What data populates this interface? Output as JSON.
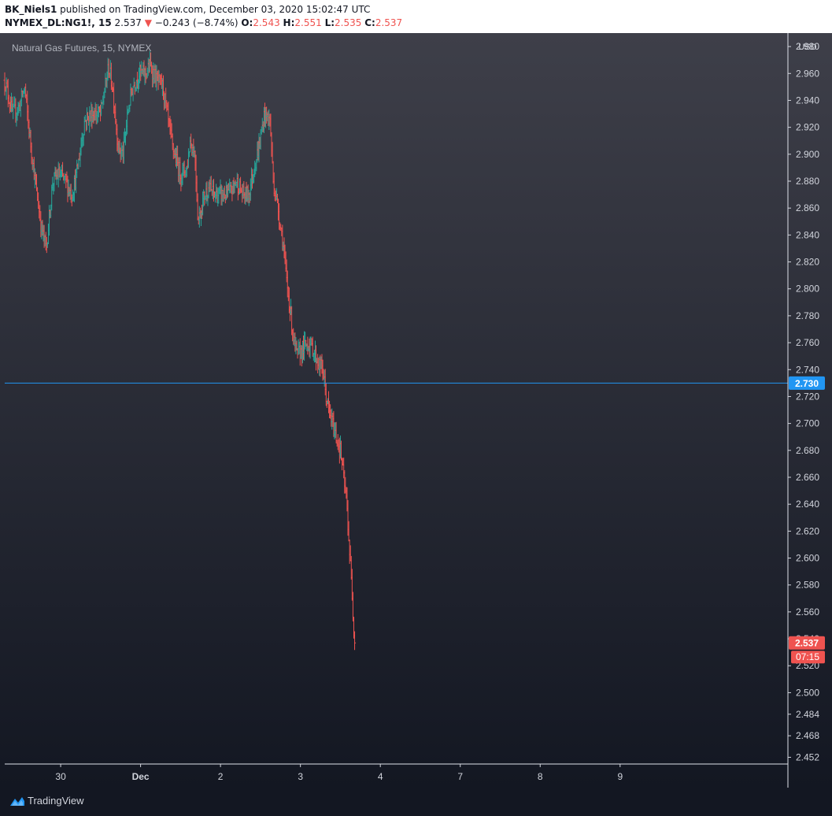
{
  "header": {
    "publisher": "BK_Niels1",
    "published_text": " published on TradingView.com, December 03, 2020 15:02:47 UTC",
    "symbol": "NYMEX_DL:NG1!, 15",
    "last": "2.537",
    "change": "−0.243 (−8.74%)",
    "o_label": "O:",
    "o_value": "2.543",
    "h_label": "H:",
    "h_value": "2.551",
    "l_label": "L:",
    "l_value": "2.535",
    "c_label": "C:",
    "c_value": "2.537"
  },
  "footer": {
    "brand": "TradingView"
  },
  "colors": {
    "up": "#26a69a",
    "down": "#ef5350",
    "hline": "#2196f3",
    "bg_top": "#3e3f49",
    "bg_bottom": "#131722",
    "text": "#d1d4dc"
  },
  "chart_data": {
    "type": "ohlc",
    "title": "Natural Gas Futures, 15, NYMEX",
    "currency": "USD",
    "y_range": [
      2.447,
      2.99
    ],
    "x_range_days": [
      29.3,
      39.1
    ],
    "y_ticks": [
      2.98,
      2.96,
      2.94,
      2.92,
      2.9,
      2.88,
      2.86,
      2.84,
      2.82,
      2.8,
      2.78,
      2.76,
      2.74,
      2.72,
      2.7,
      2.68,
      2.66,
      2.64,
      2.62,
      2.6,
      2.58,
      2.56,
      2.54,
      2.52,
      2.5,
      2.484,
      2.468,
      2.452
    ],
    "x_ticks": [
      {
        "label": "30",
        "day": 30
      },
      {
        "label": "Dec",
        "day": 31
      },
      {
        "label": "2",
        "day": 32
      },
      {
        "label": "3",
        "day": 33
      },
      {
        "label": "4",
        "day": 34
      },
      {
        "label": "7",
        "day": 35
      },
      {
        "label": "8",
        "day": 36
      },
      {
        "label": "9",
        "day": 37
      }
    ],
    "horizontal_line": {
      "value": 2.73,
      "label": "2.730"
    },
    "last_price": {
      "value": 2.537,
      "label": "2.537",
      "countdown": "07:15"
    },
    "path": [
      [
        29.3,
        2.955
      ],
      [
        29.4,
        2.93
      ],
      [
        29.48,
        2.935
      ],
      [
        29.55,
        2.95
      ],
      [
        29.6,
        2.92
      ],
      [
        29.68,
        2.88
      ],
      [
        29.76,
        2.845
      ],
      [
        29.82,
        2.83
      ],
      [
        29.9,
        2.88
      ],
      [
        29.98,
        2.885
      ],
      [
        30.06,
        2.88
      ],
      [
        30.14,
        2.87
      ],
      [
        30.2,
        2.885
      ],
      [
        30.3,
        2.925
      ],
      [
        30.4,
        2.93
      ],
      [
        30.5,
        2.93
      ],
      [
        30.6,
        2.965
      ],
      [
        30.65,
        2.95
      ],
      [
        30.72,
        2.905
      ],
      [
        30.78,
        2.9
      ],
      [
        30.85,
        2.935
      ],
      [
        30.9,
        2.95
      ],
      [
        30.98,
        2.96
      ],
      [
        31.06,
        2.96
      ],
      [
        31.12,
        2.966
      ],
      [
        31.2,
        2.955
      ],
      [
        31.28,
        2.95
      ],
      [
        31.33,
        2.93
      ],
      [
        31.4,
        2.905
      ],
      [
        31.5,
        2.885
      ],
      [
        31.58,
        2.89
      ],
      [
        31.62,
        2.91
      ],
      [
        31.68,
        2.9
      ],
      [
        31.72,
        2.85
      ],
      [
        31.8,
        2.87
      ],
      [
        31.85,
        2.875
      ],
      [
        31.92,
        2.87
      ],
      [
        32.0,
        2.87
      ],
      [
        32.1,
        2.87
      ],
      [
        32.2,
        2.88
      ],
      [
        32.28,
        2.87
      ],
      [
        32.35,
        2.87
      ],
      [
        32.42,
        2.89
      ],
      [
        32.48,
        2.905
      ],
      [
        32.55,
        2.93
      ],
      [
        32.62,
        2.925
      ],
      [
        32.66,
        2.88
      ],
      [
        32.72,
        2.86
      ],
      [
        32.78,
        2.835
      ],
      [
        32.82,
        2.81
      ],
      [
        32.88,
        2.78
      ],
      [
        32.92,
        2.76
      ],
      [
        32.96,
        2.75
      ],
      [
        33.02,
        2.755
      ],
      [
        33.1,
        2.76
      ],
      [
        33.16,
        2.755
      ],
      [
        33.22,
        2.745
      ],
      [
        33.28,
        2.74
      ],
      [
        33.31,
        2.725
      ],
      [
        33.35,
        2.71
      ],
      [
        33.4,
        2.7
      ],
      [
        33.45,
        2.69
      ],
      [
        33.5,
        2.68
      ],
      [
        33.54,
        2.66
      ],
      [
        33.58,
        2.64
      ],
      [
        33.6,
        2.62
      ],
      [
        33.63,
        2.59
      ],
      [
        33.65,
        2.57
      ],
      [
        33.67,
        2.545
      ],
      [
        33.68,
        2.537
      ]
    ]
  }
}
